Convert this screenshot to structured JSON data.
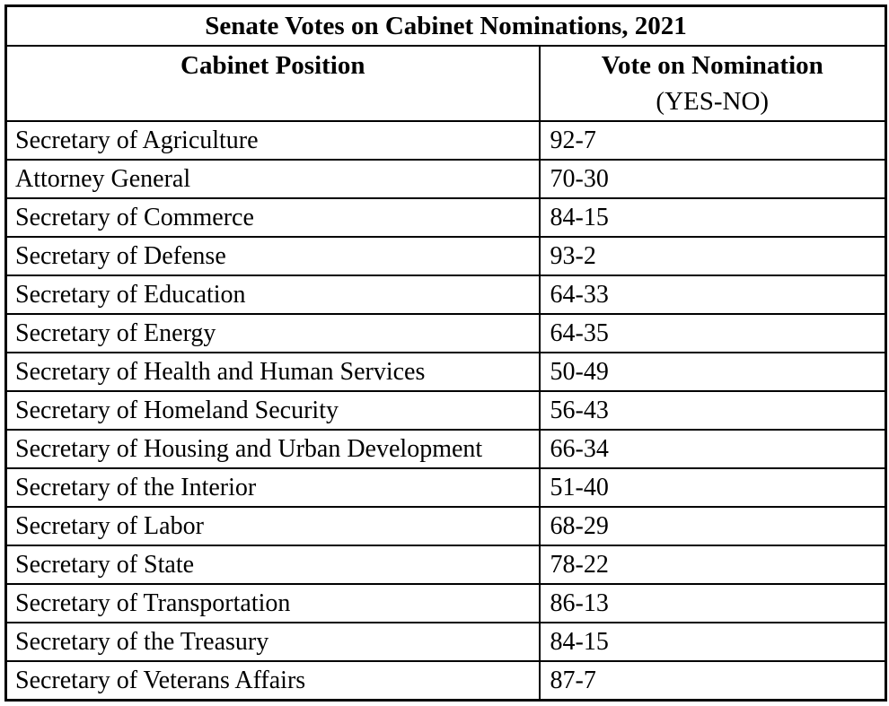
{
  "table": {
    "title": "Senate Votes on Cabinet Nominations, 2021",
    "header": {
      "col1": "Cabinet Position",
      "col2_line1": "Vote on Nomination",
      "col2_line2": "(YES-NO)"
    },
    "rows": [
      {
        "position": "Secretary of Agriculture",
        "vote": "92-7"
      },
      {
        "position": "Attorney General",
        "vote": "70-30"
      },
      {
        "position": "Secretary of Commerce",
        "vote": "84-15"
      },
      {
        "position": "Secretary of Defense",
        "vote": "93-2"
      },
      {
        "position": "Secretary of Education",
        "vote": "64-33"
      },
      {
        "position": "Secretary of Energy",
        "vote": "64-35"
      },
      {
        "position": "Secretary of Health and Human Services",
        "vote": "50-49"
      },
      {
        "position": "Secretary of Homeland Security",
        "vote": "56-43"
      },
      {
        "position": "Secretary of Housing and Urban Development",
        "vote": "66-34"
      },
      {
        "position": "Secretary of the Interior",
        "vote": "51-40"
      },
      {
        "position": "Secretary of Labor",
        "vote": "68-29"
      },
      {
        "position": "Secretary of State",
        "vote": "78-22"
      },
      {
        "position": "Secretary of Transportation",
        "vote": "86-13"
      },
      {
        "position": "Secretary of the Treasury",
        "vote": "84-15"
      },
      {
        "position": "Secretary of Veterans Affairs",
        "vote": "87-7"
      }
    ],
    "colors": {
      "border": "#000000",
      "text": "#000000",
      "background": "#ffffff"
    }
  }
}
